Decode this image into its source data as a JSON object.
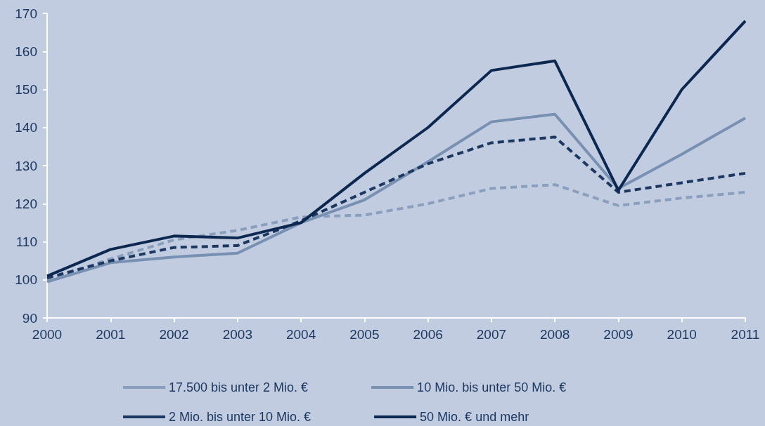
{
  "chart_data": {
    "type": "line",
    "x": [
      2000,
      2001,
      2002,
      2003,
      2004,
      2005,
      2006,
      2007,
      2008,
      2009,
      2010,
      2011
    ],
    "xlim": [
      2000,
      2011
    ],
    "xticks": [
      2000,
      2001,
      2002,
      2003,
      2004,
      2005,
      2006,
      2007,
      2008,
      2009,
      2010,
      2011
    ],
    "ylim": [
      90,
      170
    ],
    "yticks": [
      90,
      100,
      110,
      120,
      130,
      140,
      150,
      160,
      170
    ],
    "grid": false,
    "legend": "bottom",
    "marker": "none",
    "series": [
      {
        "name": "17.500 bis unter 2 Mio. €",
        "color": "#8a9fbd",
        "line_style": "dashed",
        "values": [
          100,
          105.5,
          110.5,
          113,
          116.5,
          117,
          120,
          124,
          125,
          119.5,
          121.5,
          123
        ]
      },
      {
        "name": "10 Mio. bis unter 50 Mio. €",
        "color": "#7890b2",
        "line_style": "solid",
        "values": [
          99.5,
          104.5,
          106,
          107,
          115,
          121,
          131,
          141.5,
          143.5,
          124,
          133,
          142.5
        ]
      },
      {
        "name": "2 Mio. bis unter 10 Mio. €",
        "color": "#1c3860",
        "line_style": "dashed",
        "values": [
          100.5,
          105,
          108.5,
          109,
          115.5,
          123,
          130.5,
          136,
          137.5,
          123,
          125.5,
          128
        ]
      },
      {
        "name": "50 Mio. € und mehr",
        "color": "#0c2850",
        "line_style": "solid",
        "values": [
          101,
          108,
          111.5,
          111,
          115,
          128,
          140,
          155,
          157.5,
          123.5,
          150,
          168
        ]
      }
    ]
  }
}
